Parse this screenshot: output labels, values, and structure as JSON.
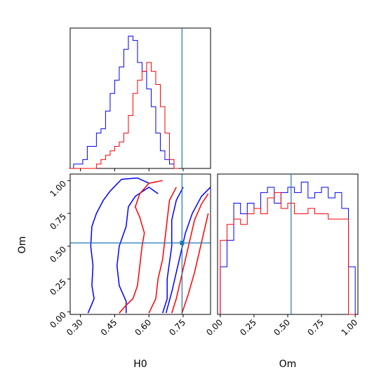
{
  "chart_data": {
    "type": "corner",
    "params": [
      "H0",
      "Om"
    ],
    "truth": {
      "H0": 0.745,
      "Om": 0.525
    },
    "truth_color": "#1f77b4",
    "series": [
      {
        "color": "#0000ff"
      },
      {
        "color": "#ff0000"
      }
    ],
    "panels": {
      "hist_H0": {
        "type": "histogram",
        "xlim": [
          0.255,
          0.87
        ],
        "bin_width": 0.02,
        "bin_start": 0.25,
        "series_values": [
          [
            0,
            0.5,
            0.5,
            1,
            2.5,
            2.5,
            4,
            4.5,
            6.5,
            8.5,
            10,
            11.5,
            13.5,
            15,
            14.5,
            12,
            11,
            9,
            7,
            4,
            2,
            1,
            0.5,
            0
          ],
          [
            0,
            0,
            0,
            0,
            0,
            0,
            0.5,
            1,
            1.5,
            2,
            2.5,
            3,
            4,
            6,
            8.5,
            10,
            11,
            12,
            11,
            9.5,
            7,
            4,
            1,
            0
          ]
        ]
      },
      "hist_Om": {
        "type": "histogram",
        "xlim": [
          -0.02,
          1.02
        ],
        "bins": 20,
        "series_values": [
          [
            4.5,
            7,
            10.5,
            9.5,
            10.5,
            10,
            11.5,
            12,
            10.5,
            11.5,
            12,
            11.5,
            12.5,
            11,
            11.5,
            12,
            11,
            11.5,
            10,
            4.5
          ],
          [
            7,
            8.5,
            9,
            8.5,
            9.5,
            10,
            9.5,
            11,
            11.5,
            10,
            10.5,
            9.5,
            9.5,
            10,
            9.5,
            9.5,
            9,
            9,
            9,
            0
          ]
        ]
      },
      "contour_H0_Om": {
        "type": "contour",
        "xlabel": "H0",
        "ylabel": "Om",
        "xlim": [
          0.255,
          0.87
        ],
        "ylim": [
          -0.02,
          1.05
        ],
        "xticks": [
          "0.30",
          "0.45",
          "0.60",
          "0.75"
        ],
        "yticks": [
          "0.00",
          "0.25",
          "0.50",
          "0.75",
          "1.00"
        ],
        "series_lines": [
          [
            [
              [
                0.333,
                -0.01
              ],
              [
                0.36,
                0.1
              ],
              [
                0.35,
                0.2
              ],
              [
                0.355,
                0.35
              ],
              [
                0.345,
                0.5
              ],
              [
                0.35,
                0.65
              ],
              [
                0.37,
                0.75
              ],
              [
                0.4,
                0.85
              ],
              [
                0.43,
                0.92
              ],
              [
                0.48,
                1.01
              ],
              [
                0.55,
                1.02
              ],
              [
                0.6,
                0.98
              ]
            ],
            [
              [
                0.5,
                -0.01
              ],
              [
                0.5,
                0.08
              ],
              [
                0.47,
                0.2
              ],
              [
                0.46,
                0.35
              ],
              [
                0.47,
                0.5
              ],
              [
                0.5,
                0.65
              ],
              [
                0.51,
                0.8
              ],
              [
                0.54,
                0.88
              ],
              [
                0.6,
                0.95
              ],
              [
                0.64,
                0.9
              ]
            ],
            [
              [
                0.66,
                -0.01
              ],
              [
                0.68,
                0.1
              ],
              [
                0.68,
                0.25
              ],
              [
                0.7,
                0.5
              ],
              [
                0.7,
                0.7
              ],
              [
                0.72,
                0.85
              ],
              [
                0.75,
                0.95
              ]
            ],
            [
              [
                0.675,
                -0.01
              ],
              [
                0.7,
                0.15
              ],
              [
                0.72,
                0.3
              ],
              [
                0.74,
                0.45
              ],
              [
                0.76,
                0.6
              ],
              [
                0.79,
                0.75
              ],
              [
                0.83,
                0.88
              ],
              [
                0.87,
                0.95
              ]
            ]
          ],
          [
            [
              [
                0.47,
                -0.01
              ],
              [
                0.5,
                0.05
              ],
              [
                0.53,
                0.1
              ],
              [
                0.55,
                0.2
              ],
              [
                0.56,
                0.35
              ],
              [
                0.57,
                0.5
              ],
              [
                0.58,
                0.6
              ],
              [
                0.56,
                0.72
              ],
              [
                0.54,
                0.8
              ],
              [
                0.56,
                0.9
              ],
              [
                0.6,
                0.98
              ],
              [
                0.66,
                1.0
              ]
            ],
            [
              [
                0.6,
                -0.01
              ],
              [
                0.63,
                0.1
              ],
              [
                0.64,
                0.25
              ],
              [
                0.66,
                0.4
              ],
              [
                0.67,
                0.55
              ],
              [
                0.68,
                0.7
              ],
              [
                0.69,
                0.85
              ],
              [
                0.72,
                0.95
              ]
            ],
            [
              [
                0.7,
                -0.01
              ],
              [
                0.72,
                0.1
              ],
              [
                0.74,
                0.25
              ],
              [
                0.76,
                0.4
              ],
              [
                0.78,
                0.55
              ],
              [
                0.8,
                0.7
              ],
              [
                0.83,
                0.82
              ],
              [
                0.86,
                0.9
              ]
            ],
            [
              [
                0.745,
                -0.01
              ],
              [
                0.77,
                0.12
              ],
              [
                0.8,
                0.3
              ],
              [
                0.82,
                0.45
              ],
              [
                0.84,
                0.6
              ],
              [
                0.86,
                0.75
              ]
            ]
          ]
        ]
      }
    }
  }
}
